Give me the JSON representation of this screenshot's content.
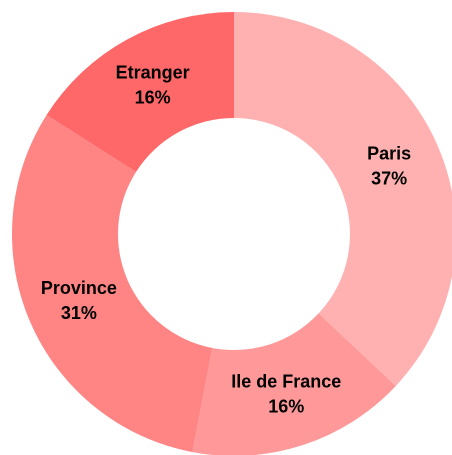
{
  "chart_data": {
    "type": "pie",
    "donut": true,
    "categories": [
      "Paris",
      "Ile de France",
      "Province",
      "Etranger"
    ],
    "values": [
      37,
      16,
      31,
      16
    ],
    "value_labels": [
      "37%",
      "16%",
      "31%",
      "16%"
    ],
    "colors": [
      "#ffb1b1",
      "#ff9999",
      "#ff8585",
      "#ff6868"
    ]
  }
}
